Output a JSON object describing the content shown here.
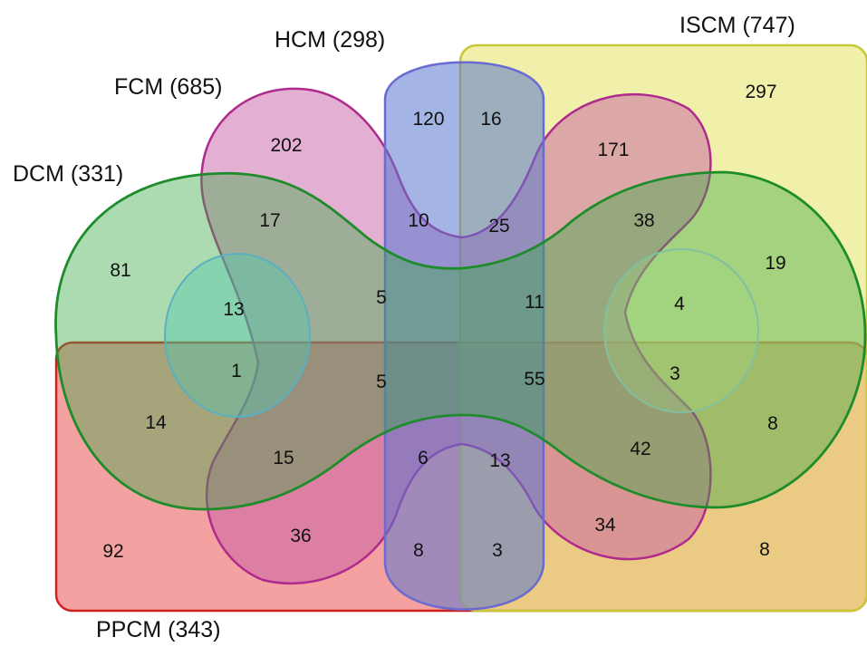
{
  "sets": {
    "hcm": {
      "label": "HCM (298)",
      "color": "#5a78d0"
    },
    "iscm": {
      "label": "ISCM (747)",
      "color": "#e0e070"
    },
    "fcm": {
      "label": "FCM (685)",
      "color": "#c45aa6"
    },
    "dcm": {
      "label": "DCM (331)",
      "color": "#3caa44"
    },
    "ppcm": {
      "label": "PPCM (343)",
      "color": "#e63a3a"
    }
  },
  "counts": {
    "iscm_only": "297",
    "hcm_only": "120",
    "hcm_iscm": "16",
    "fcm_only": "202",
    "fcm_iscm": "171",
    "dcm_only": "81",
    "dcm_fcm": "17",
    "hcm_fcm_center": "10",
    "hcm_iscm_center": "25",
    "dcm_fcm_iscm": "38",
    "dcm_iscm": "19",
    "left_inner_upper": "13",
    "center_upper_left": "5",
    "center_upper_right": "11",
    "right_inner_upper": "4",
    "left_inner_lower": "1",
    "center_lower_left": "5",
    "center_lower_right": "55",
    "right_inner_lower": "3",
    "dcm_ppcm": "14",
    "dcm_iscm_ppcm": "8",
    "dcm_fcm_ppcm": "15",
    "hcm_ppcm_center": "6",
    "hcm_iscm_ppcm_center": "13",
    "dcm_fcm_iscm_ppcm": "42",
    "ppcm_only": "92",
    "fcm_ppcm": "36",
    "hcm_ppcm": "8",
    "hcm_iscm_ppcm": "3",
    "fcm_iscm_ppcm": "34",
    "iscm_ppcm": "8"
  }
}
